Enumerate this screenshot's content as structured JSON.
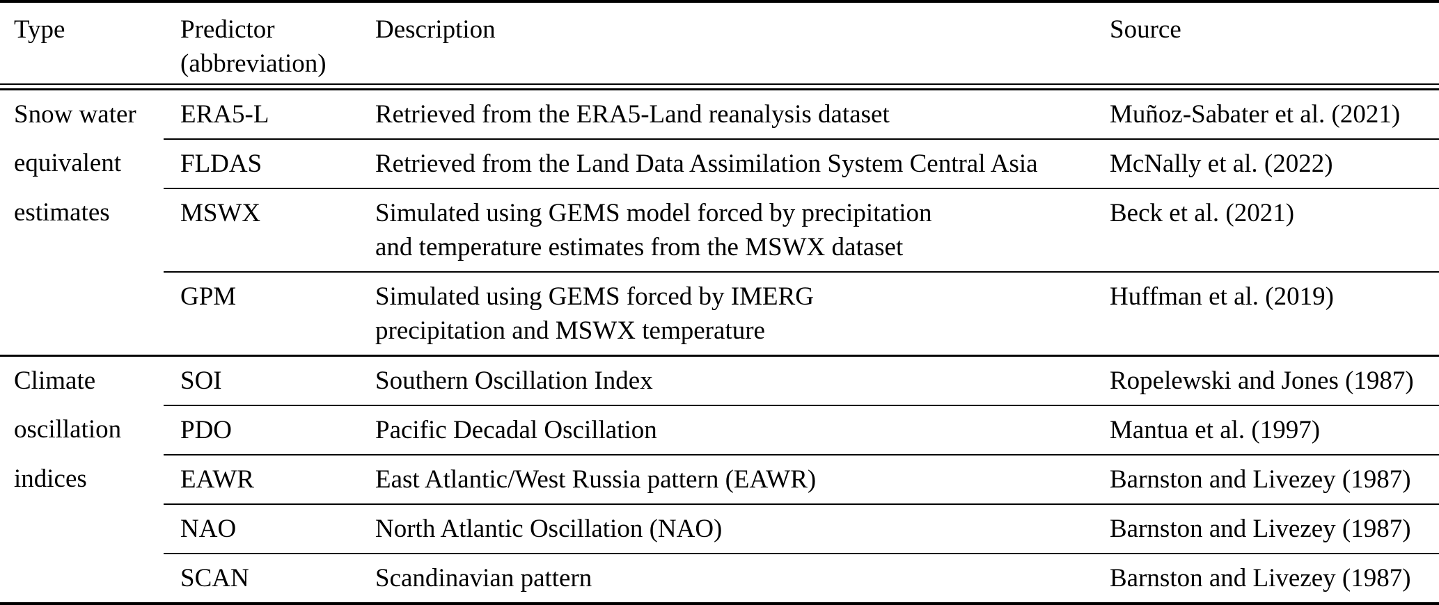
{
  "header": {
    "type": "Type",
    "predictor_line1": "Predictor",
    "predictor_line2": "(abbreviation)",
    "description": "Description",
    "source": "Source"
  },
  "groups": [
    {
      "type_lines": [
        "Snow water",
        "equivalent",
        "estimates"
      ],
      "rows": [
        {
          "predictor": "ERA5-L",
          "desc_lines": [
            "Retrieved from the ERA5-Land reanalysis dataset"
          ],
          "source": "Muñoz-Sabater et al. (2021)"
        },
        {
          "predictor": "FLDAS",
          "desc_lines": [
            "Retrieved from the Land Data Assimilation System Central Asia"
          ],
          "source": "McNally et al. (2022)"
        },
        {
          "predictor": "MSWX",
          "desc_lines": [
            "Simulated using GEMS model forced by precipitation",
            "and temperature estimates from the MSWX dataset"
          ],
          "source": "Beck et al. (2021)"
        },
        {
          "predictor": "GPM",
          "desc_lines": [
            "Simulated using GEMS forced by IMERG",
            "precipitation and MSWX temperature"
          ],
          "source": "Huffman et al. (2019)"
        }
      ]
    },
    {
      "type_lines": [
        "Climate",
        "oscillation",
        "indices"
      ],
      "rows": [
        {
          "predictor": "SOI",
          "desc_lines": [
            "Southern Oscillation Index"
          ],
          "source": "Ropelewski and Jones (1987)"
        },
        {
          "predictor": "PDO",
          "desc_lines": [
            "Pacific Decadal Oscillation"
          ],
          "source": "Mantua et al. (1997)"
        },
        {
          "predictor": "EAWR",
          "desc_lines": [
            "East Atlantic/West Russia pattern (EAWR)"
          ],
          "source": "Barnston and Livezey (1987)"
        },
        {
          "predictor": "NAO",
          "desc_lines": [
            "North Atlantic Oscillation (NAO)"
          ],
          "source": "Barnston and Livezey (1987)"
        },
        {
          "predictor": "SCAN",
          "desc_lines": [
            "Scandinavian pattern"
          ],
          "source": "Barnston and Livezey (1987)"
        }
      ]
    }
  ],
  "colors": {
    "text": "#000000",
    "rule": "#000000",
    "background": "#ffffff"
  }
}
